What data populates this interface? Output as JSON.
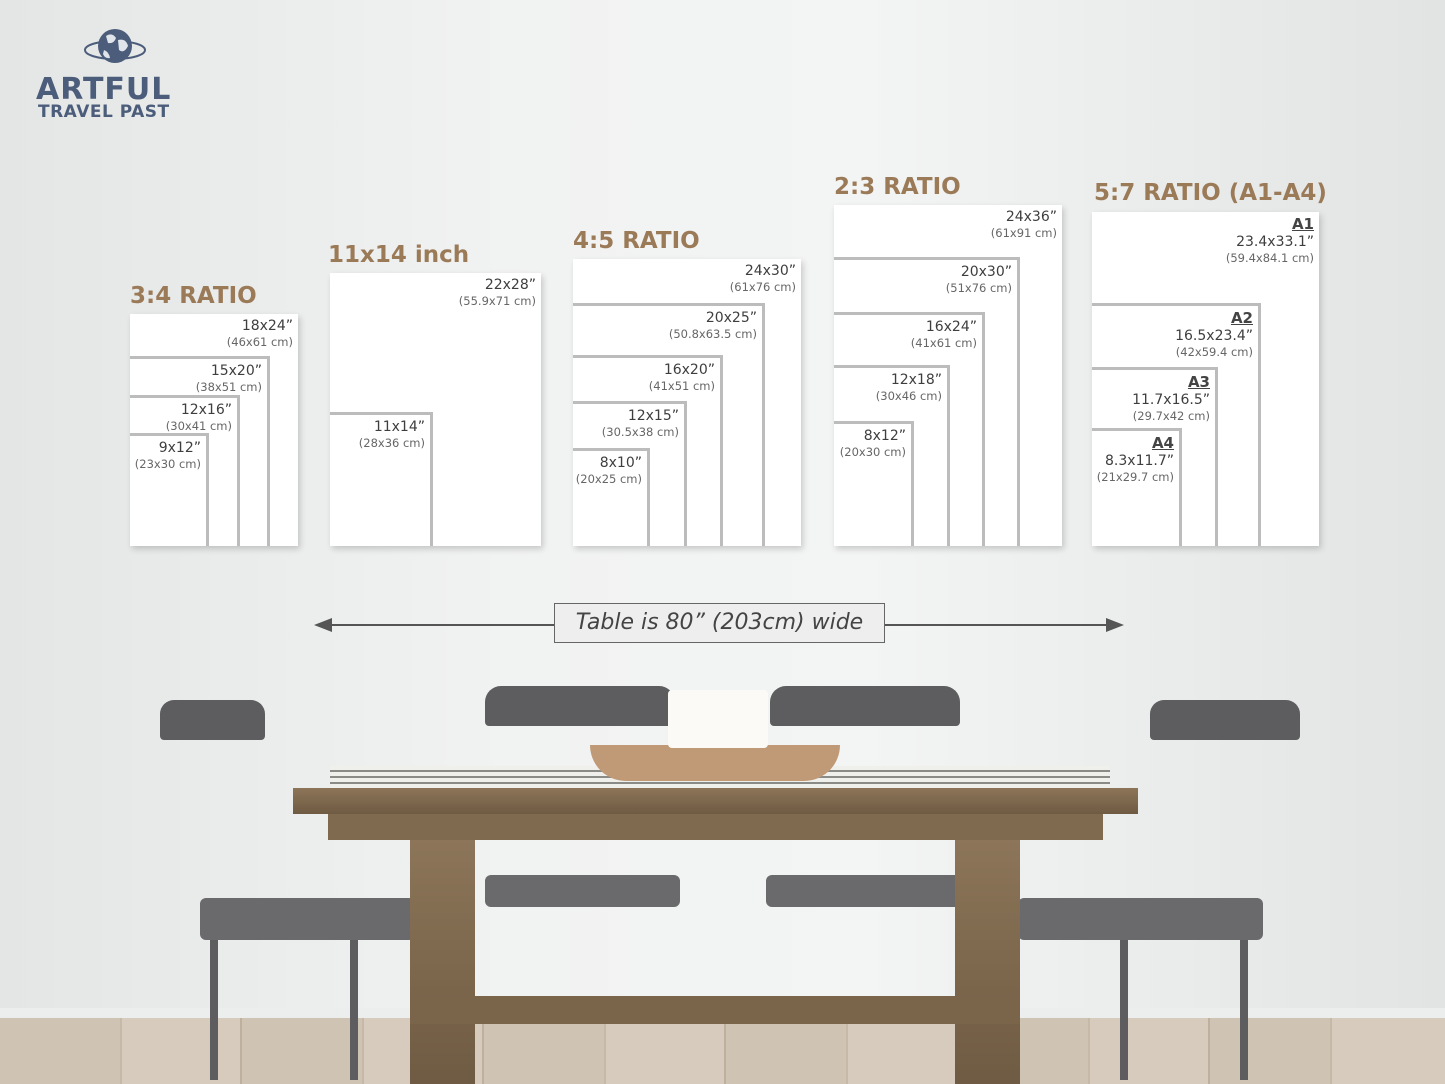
{
  "logo": {
    "line1": "ARTFUL",
    "line2": "TRAVEL PAST",
    "icon": "globe-icon",
    "color": "#4b5d7a"
  },
  "title_color": "#9b7a58",
  "groups": [
    {
      "title": "3:4 RATIO",
      "sizes": [
        {
          "inch": "18x24”",
          "cm": "(46x61 cm)"
        },
        {
          "inch": "15x20”",
          "cm": "(38x51 cm)"
        },
        {
          "inch": "12x16”",
          "cm": "(30x41 cm)"
        },
        {
          "inch": "9x12”",
          "cm": "(23x30 cm)"
        }
      ]
    },
    {
      "title": "11x14 inch",
      "sizes": [
        {
          "inch": "22x28”",
          "cm": "(55.9x71 cm)"
        },
        {
          "inch": "11x14”",
          "cm": "(28x36 cm)"
        }
      ]
    },
    {
      "title": "4:5 RATIO",
      "sizes": [
        {
          "inch": "24x30”",
          "cm": "(61x76 cm)"
        },
        {
          "inch": "20x25”",
          "cm": "(50.8x63.5 cm)"
        },
        {
          "inch": "16x20”",
          "cm": "(41x51 cm)"
        },
        {
          "inch": "12x15”",
          "cm": "(30.5x38 cm)"
        },
        {
          "inch": "8x10”",
          "cm": "(20x25 cm)"
        }
      ]
    },
    {
      "title": "2:3 RATIO",
      "sizes": [
        {
          "inch": "24x36”",
          "cm": "(61x91 cm)"
        },
        {
          "inch": "20x30”",
          "cm": "(51x76 cm)"
        },
        {
          "inch": "16x24”",
          "cm": "(41x61 cm)"
        },
        {
          "inch": "12x18”",
          "cm": "(30x46 cm)"
        },
        {
          "inch": "8x12”",
          "cm": "(20x30 cm)"
        }
      ]
    },
    {
      "title": "5:7 RATIO (A1-A4)",
      "sizes": [
        {
          "name": "A1",
          "inch": "23.4x33.1”",
          "cm": "(59.4x84.1 cm)"
        },
        {
          "name": "A2",
          "inch": "16.5x23.4”",
          "cm": "(42x59.4 cm)"
        },
        {
          "name": "A3",
          "inch": "11.7x16.5”",
          "cm": "(29.7x42 cm)"
        },
        {
          "name": "A4",
          "inch": "8.3x11.7”",
          "cm": "(21x29.7 cm)"
        }
      ]
    }
  ],
  "table_note": "Table is 80” (203cm) wide"
}
